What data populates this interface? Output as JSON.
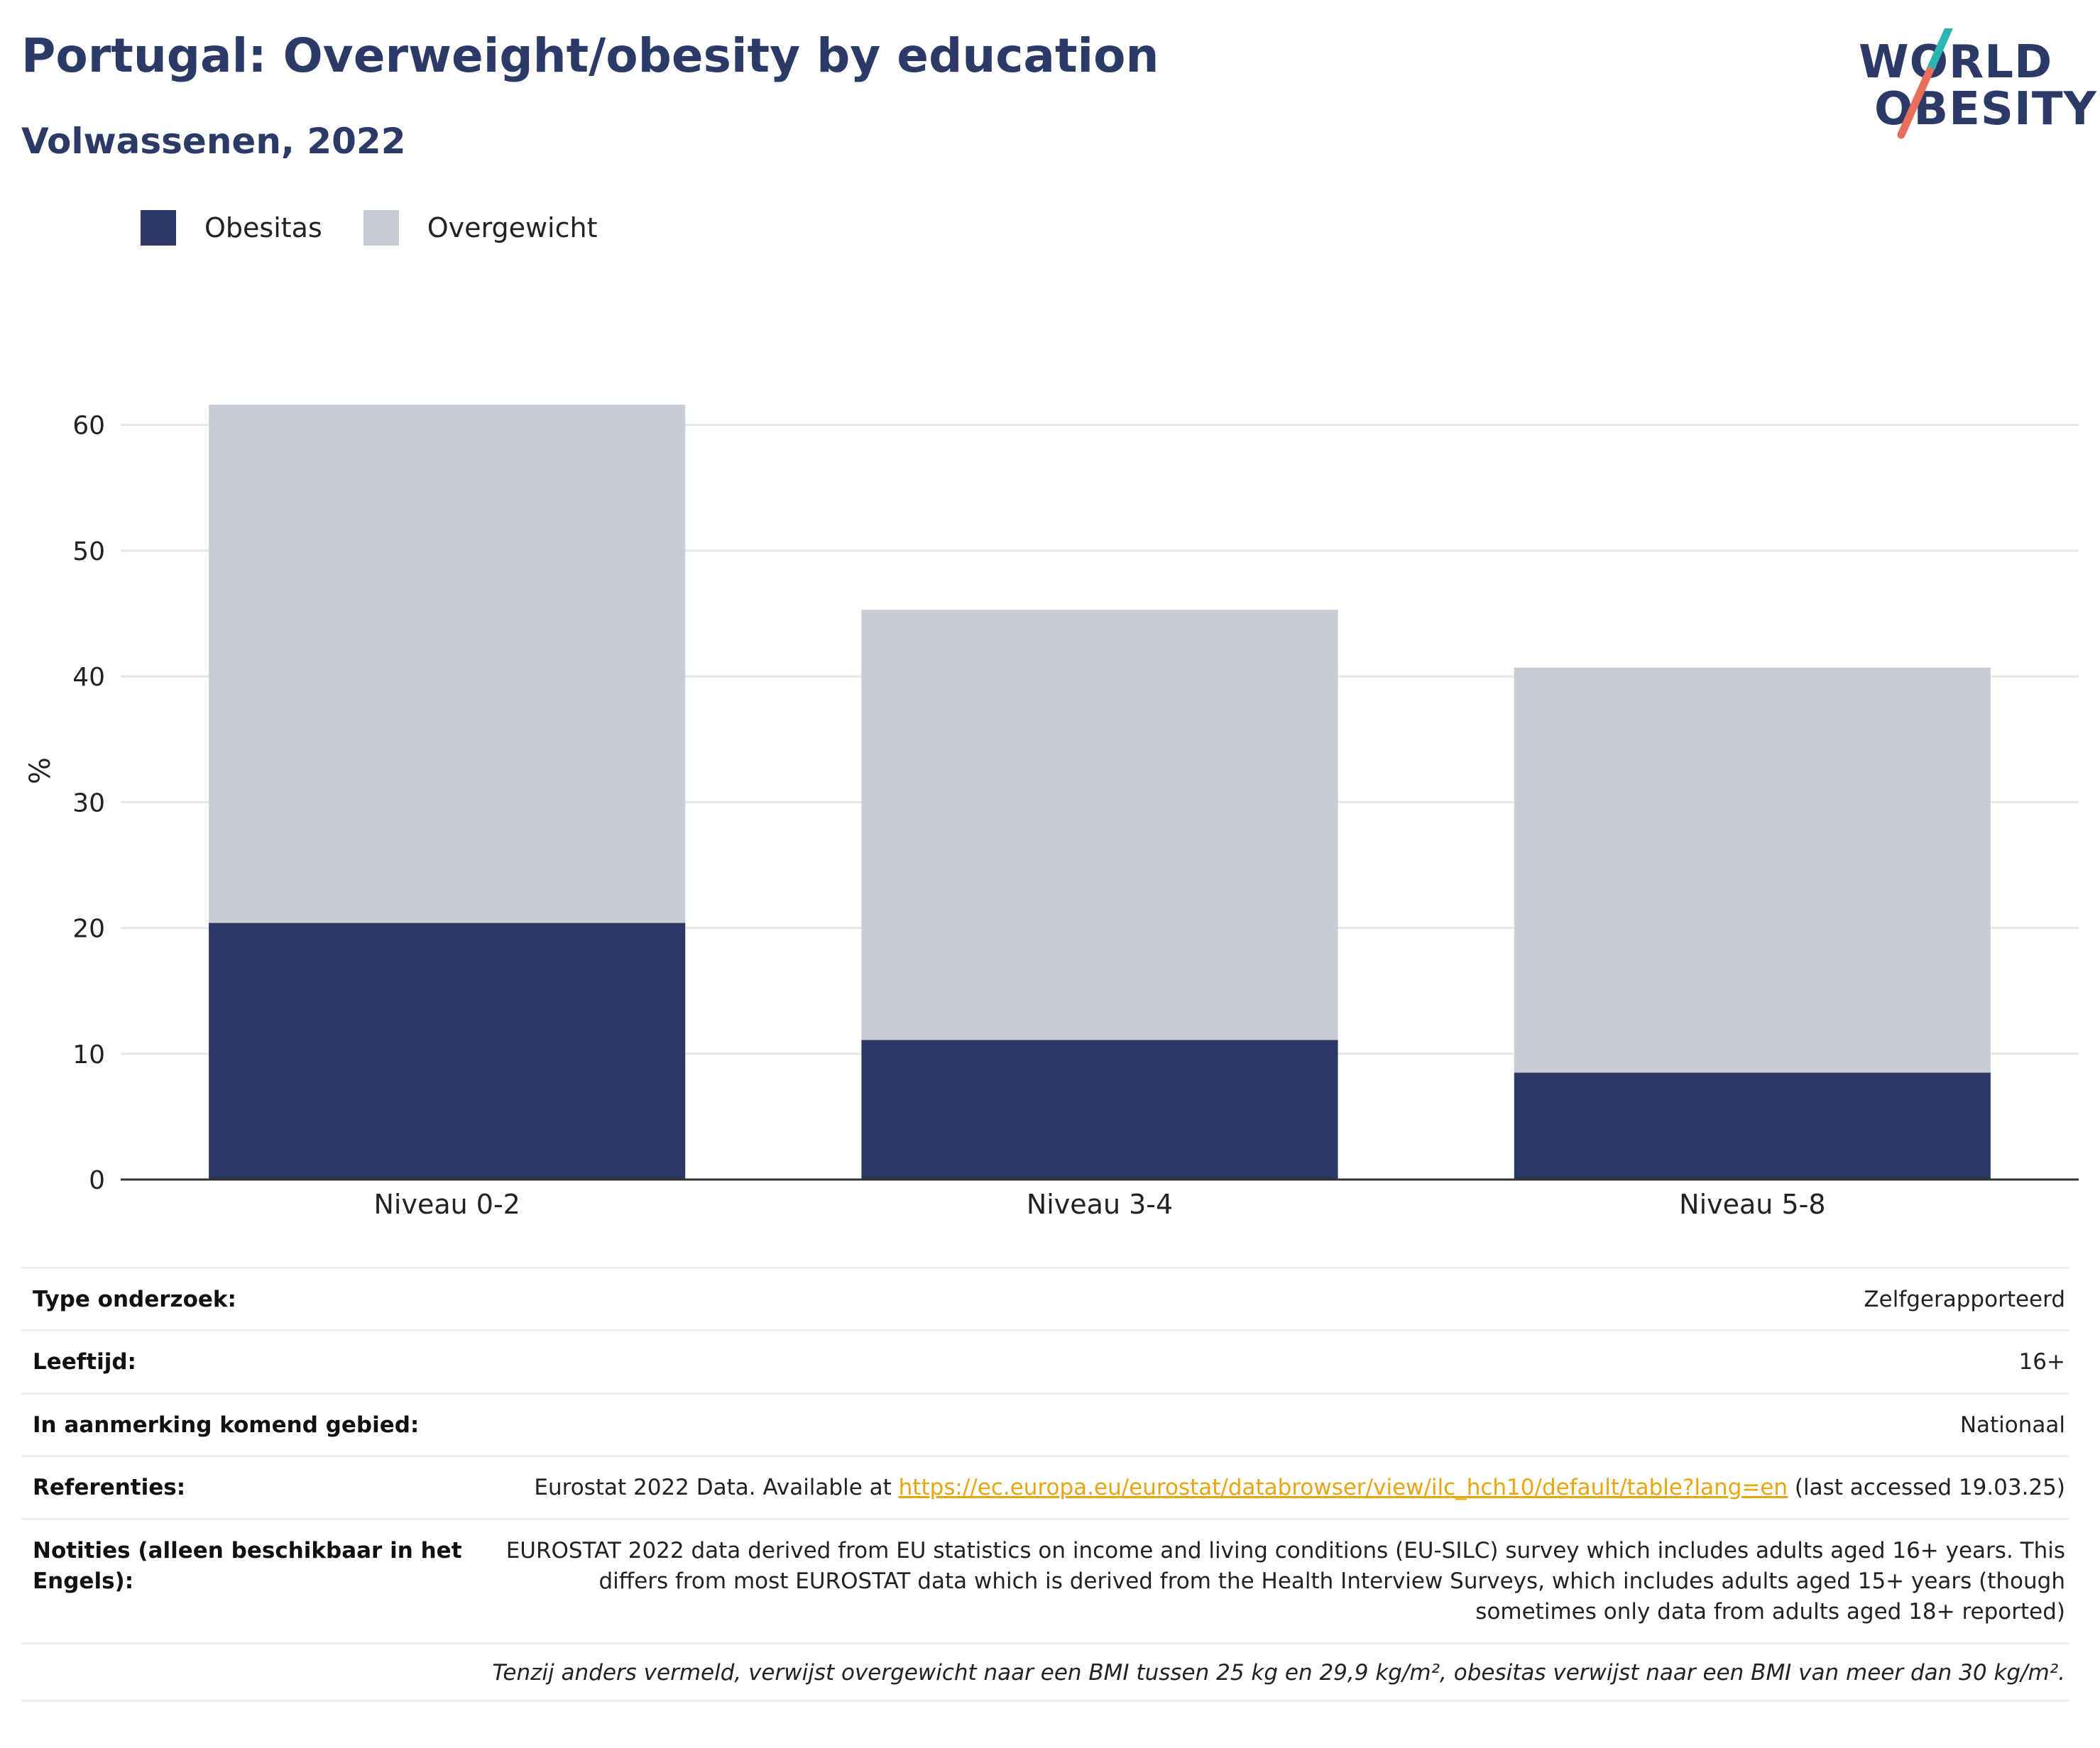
{
  "header": {
    "title": "Portugal: Overweight/obesity by education",
    "subtitle": "Volwassenen, 2022"
  },
  "logo": {
    "line1": "WORLD",
    "line2": "OBESITY",
    "accent_colors": [
      "#2bb5b0",
      "#e8705a"
    ]
  },
  "colors": {
    "obesitas": "#2b3764",
    "overgewicht": "#c9ccd7",
    "title": "#2b3a67",
    "link": "#e9a50f"
  },
  "chart_data": {
    "type": "bar",
    "stacked": true,
    "categories": [
      "Niveau 0-2",
      "Niveau 3-4",
      "Niveau 5-8"
    ],
    "series": [
      {
        "name": "Obesitas",
        "values": [
          20.4,
          11.1,
          8.5
        ]
      },
      {
        "name": "Overgewicht",
        "values": [
          41.2,
          34.2,
          32.2
        ]
      }
    ],
    "ylabel": "%",
    "ylim": [
      0,
      65
    ],
    "yticks": [
      0,
      10,
      20,
      30,
      40,
      50,
      60
    ],
    "grid": true,
    "legend_position": "top-left"
  },
  "info": {
    "rows": [
      {
        "key": "Type onderzoek:",
        "value": "Zelfgerapporteerd"
      },
      {
        "key": "Leeftijd:",
        "value": "16+"
      },
      {
        "key": "In aanmerking komend gebied:",
        "value": "Nationaal"
      }
    ],
    "references": {
      "key": "Referenties:",
      "prefix": "Eurostat 2022 Data. Available at ",
      "link": "https://ec.europa.eu/eurostat/databrowser/view/ilc_hch10/default/table?lang=en",
      "suffix": " (last accessed 19.03.25)"
    },
    "notes": {
      "key": "Notities (alleen beschikbaar in het Engels):",
      "value": "EUROSTAT 2022 data derived from EU statistics on income and living conditions (EU-SILC) survey which includes adults aged 16+ years. This differs from most EUROSTAT data which is derived from the Health Interview Surveys, which includes adults aged 15+ years (though sometimes only data from adults aged 18+ reported)"
    },
    "footnote": "Tenzij anders vermeld, verwijst overgewicht naar een BMI tussen 25 kg en 29,9 kg/m², obesitas verwijst naar een BMI van meer dan 30 kg/m²."
  }
}
